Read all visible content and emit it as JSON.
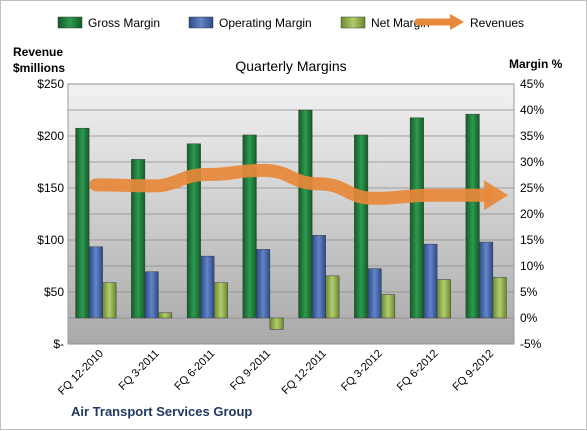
{
  "chart_data": {
    "type": "bar",
    "title": "Quarterly Margins",
    "company": "Air Transport  Services Group",
    "ylabel_left": [
      "Revenue",
      "$millions"
    ],
    "ylabel_right": "Margin %",
    "categories": [
      "FQ 12-2010",
      "FQ 3-2011",
      "FQ 6-2011",
      "FQ 9-2011",
      "FQ 12-2011",
      "FQ 3-2012",
      "FQ 6-2012",
      "FQ 9-2012"
    ],
    "left_axis": {
      "ylim": [
        0,
        250
      ],
      "ticks": [
        "$-",
        "$50",
        "$100",
        "$150",
        "$200",
        "$250"
      ],
      "tick_values": [
        0,
        50,
        100,
        150,
        200,
        250
      ]
    },
    "right_axis": {
      "ylim": [
        -5,
        45
      ],
      "ticks": [
        "-5%",
        "0%",
        "5%",
        "10%",
        "15%",
        "20%",
        "25%",
        "30%",
        "35%",
        "40%",
        "45%"
      ],
      "tick_values": [
        -5,
        0,
        5,
        10,
        15,
        20,
        25,
        30,
        35,
        40,
        45
      ]
    },
    "series": [
      {
        "name": "Gross Margin",
        "kind": "bar",
        "axis": "right",
        "color": "#1f7a3a",
        "values": [
          36.5,
          30.5,
          33.5,
          35.2,
          40.0,
          35.2,
          38.5,
          39.2
        ]
      },
      {
        "name": "Operating Margin",
        "kind": "bar",
        "axis": "right",
        "color": "#3f62a8",
        "values": [
          13.7,
          8.9,
          11.9,
          13.2,
          15.9,
          9.5,
          14.2,
          14.6
        ]
      },
      {
        "name": "Net Margin",
        "kind": "bar",
        "axis": "right",
        "color": "#8fb04a",
        "values": [
          6.8,
          1.0,
          6.8,
          -2.2,
          8.1,
          4.5,
          7.4,
          7.8
        ]
      },
      {
        "name": "Revenues",
        "kind": "line",
        "axis": "left",
        "color": "#e8883a",
        "values": [
          153,
          152,
          163,
          167,
          154,
          140,
          143,
          143
        ]
      }
    ],
    "grid": true,
    "legend_position": "top"
  }
}
